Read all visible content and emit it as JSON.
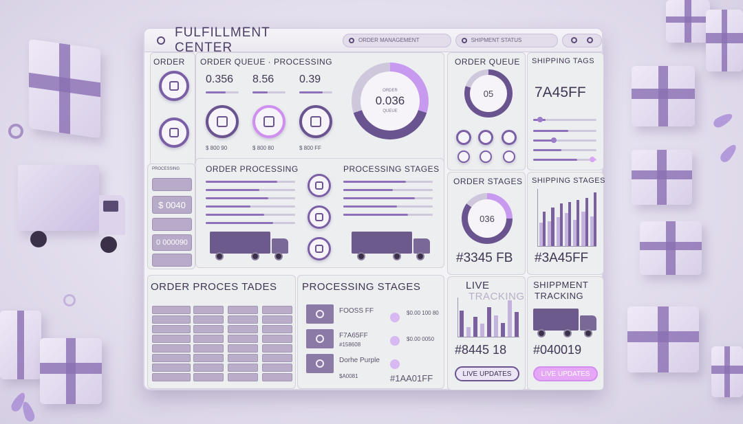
{
  "app": {
    "title": "FULFILLMENT CENTER",
    "header_pill": "ORDER MANAGEMENT",
    "header_pill_right": "SHIPMENT STATUS"
  },
  "panels": {
    "order": {
      "title": "ORDER"
    },
    "queue": {
      "title": "ORDER QUEUE · PROCESSING",
      "stats": [
        "0.356",
        "8.56",
        "0.39"
      ],
      "costs": [
        "$ 800 90",
        "$ 800 80",
        "$ 800 FF"
      ],
      "donut_value": "0.036",
      "donut_top": "ORDER",
      "donut_bottom": "QUEUE"
    },
    "order_queue": {
      "title": "ORDER QUEUE",
      "value": "05"
    },
    "shipping_tags": {
      "title": "SHIPPING TAGS",
      "value": "7A45FF"
    },
    "side_list": {
      "header": "PROCESSING",
      "values": [
        "",
        "$ 0040",
        "",
        "0 000090",
        ""
      ]
    },
    "processing": {
      "title_left": "ORDER PROCESSING",
      "title_right": "PROCESSING STAGES"
    },
    "order_stages": {
      "title": "ORDER STAGES",
      "value": "036",
      "footer": "#3345 FB"
    },
    "shipping_stages": {
      "title": "SHIPPING STAGES",
      "footer": "#3A45FF",
      "bars": [
        [
          48,
          72
        ],
        [
          52,
          80
        ],
        [
          60,
          88
        ],
        [
          68,
          92
        ],
        [
          55,
          96
        ],
        [
          72,
          100
        ],
        [
          62,
          112
        ]
      ]
    },
    "proc_stages_table": {
      "title": "ORDER PROCES TADES"
    },
    "processing_stages_list": {
      "title": "PROCESSING STAGES",
      "items": [
        {
          "label": "FOOSS FF",
          "sub": "",
          "price": "$0.00 100 80"
        },
        {
          "label": "F7A65FF",
          "sub": "#158608",
          "price": "$0.00 0050"
        },
        {
          "label": "Dorhe Purple",
          "sub": "$A0081",
          "price": "#1AA01FF"
        }
      ]
    },
    "live": {
      "title": "LIVE",
      "subtitle": "TRACKING",
      "value": "#8445 18",
      "button": "LIVE UPDATES",
      "bars": [
        78,
        30,
        60,
        40,
        90,
        65,
        42,
        110,
        75
      ]
    },
    "shipment": {
      "title": "SHIPPMENT",
      "subtitle": "TRACKING",
      "value": "#040019",
      "button": "LIVE UPDATES"
    }
  },
  "colors": {
    "accent": "#7b5fa6",
    "highlight": "#d8a6f5",
    "panel": "#eceef0"
  }
}
